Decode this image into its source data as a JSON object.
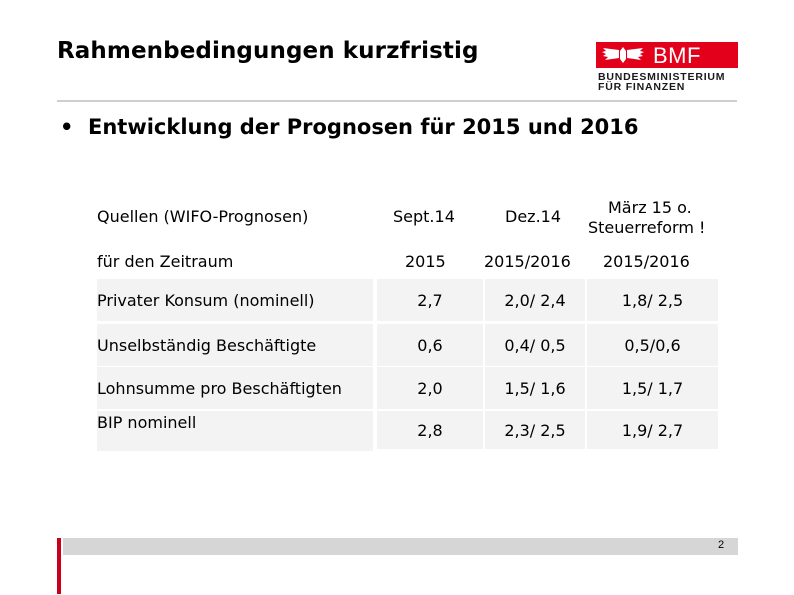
{
  "slide": {
    "title": "Rahmenbedingungen kurzfristig",
    "bullet": "Entwicklung der Prognosen für 2015 und 2016",
    "page_number": "2"
  },
  "logo": {
    "brand": "BMF",
    "line1": "BUNDESMINISTERIUM",
    "line2": "FÜR FINANZEN",
    "color": "#e3001b"
  },
  "table": {
    "header1": [
      "Quellen (WIFO-Prognosen)",
      "Sept.14",
      "Dez.14",
      "März 15 o.",
      "Steuerreform !"
    ],
    "header2": [
      "für den Zeitraum",
      "2015",
      "2015/2016",
      "2015/2016"
    ],
    "rows": [
      {
        "label": "Privater Konsum (nominell)",
        "sep": "2,7",
        "dez": "2,0/ 2,4",
        "mar": "1,8/ 2,5"
      },
      {
        "label": "Unselbständig Beschäftigte",
        "sep": "0,6",
        "dez": "0,4/ 0,5",
        "mar": "0,5/0,6"
      },
      {
        "label": "Lohnsumme pro Beschäftigten",
        "sep": "2,0",
        "dez": "1,5/ 1,6",
        "mar": "1,5/ 1,7"
      },
      {
        "label": "BIP nominell",
        "sep": "2,8",
        "dez": "2,3/ 2,5",
        "mar": "1,9/ 2,7"
      }
    ]
  }
}
